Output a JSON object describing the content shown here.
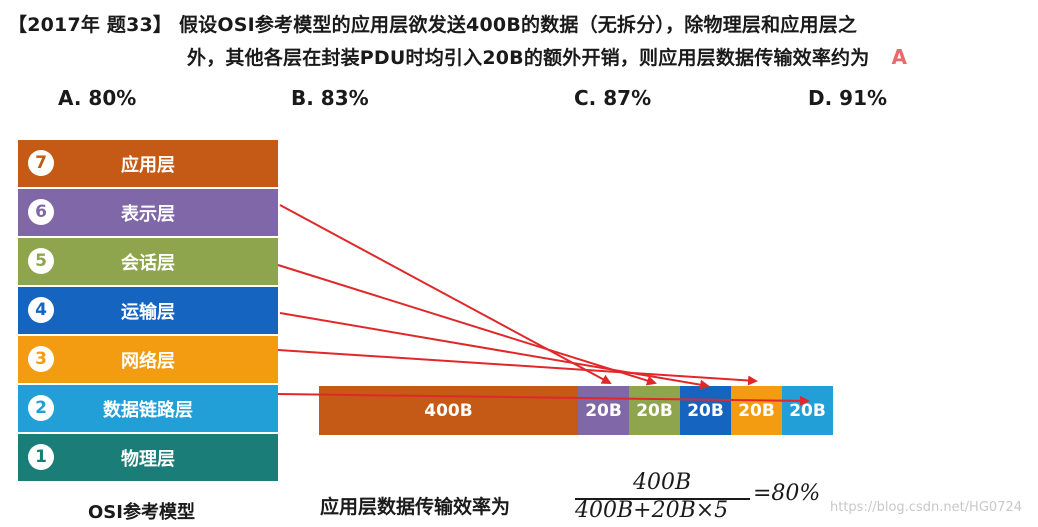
{
  "question": {
    "line1": "【2017年 题33】 假设OSI参考模型的应用层欲发送400B的数据（无拆分），除物理层和应用层之",
    "line2": "外，其他各层在封装PDU时均引入20B的额外开销，则应用层数据传输效率约为",
    "answer": "A"
  },
  "options": [
    {
      "label": "A. 80%"
    },
    {
      "label": "B. 83%"
    },
    {
      "label": "C. 87%"
    },
    {
      "label": "D. 91%"
    }
  ],
  "osi_model": {
    "caption": "OSI参考模型",
    "layers": [
      {
        "num": "7",
        "name": "应用层",
        "color": "#c45a15"
      },
      {
        "num": "6",
        "name": "表示层",
        "color": "#8068a8"
      },
      {
        "num": "5",
        "name": "会话层",
        "color": "#8ea54e"
      },
      {
        "num": "4",
        "name": "运输层",
        "color": "#1565c0"
      },
      {
        "num": "3",
        "name": "网络层",
        "color": "#f39c12"
      },
      {
        "num": "2",
        "name": "数据链路层",
        "color": "#229fd6"
      },
      {
        "num": "1",
        "name": "物理层",
        "color": "#1a7d78"
      }
    ]
  },
  "packet": [
    {
      "label": "400B",
      "color": "#c45a15"
    },
    {
      "label": "20B",
      "color": "#8068a8"
    },
    {
      "label": "20B",
      "color": "#8ea54e"
    },
    {
      "label": "20B",
      "color": "#1565c0"
    },
    {
      "label": "20B",
      "color": "#f39c12"
    },
    {
      "label": "20B",
      "color": "#229fd6"
    }
  ],
  "formula": {
    "label": "应用层数据传输效率为",
    "numerator": "400B",
    "denominator": "400B+20B×5",
    "result": "=80%"
  },
  "watermark": "https://blog.csdn.net/HG0724",
  "arrow_color": "#e0282a"
}
